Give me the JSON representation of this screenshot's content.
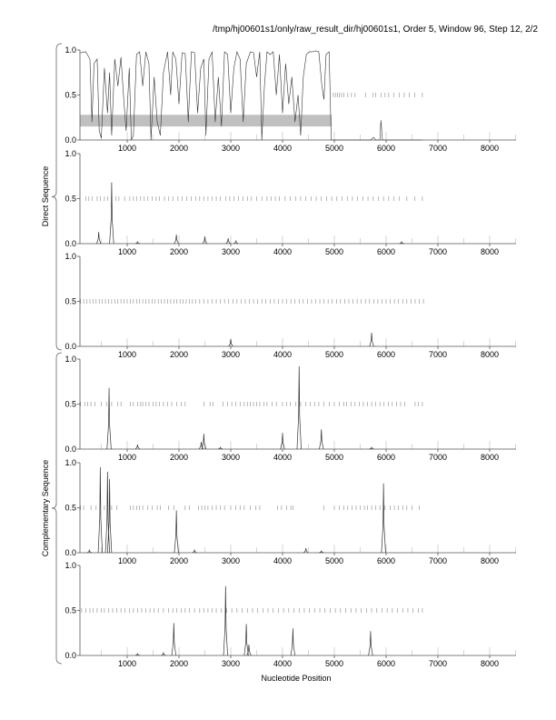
{
  "title": "/tmp/hj00601s1/only/raw_result_dir/hj00601s1, Order 5, Window 96, Step 12, 2/2",
  "group_labels": [
    "Direct Sequence",
    "Complementary Sequence"
  ],
  "chart_data": [
    {
      "type": "line",
      "xlabel": "Nucleotide Position",
      "xlim": [
        0,
        8500
      ],
      "ylim": [
        0,
        1
      ],
      "xticks": [
        1000,
        2000,
        3000,
        4000,
        5000,
        6000,
        7000,
        8000
      ],
      "yticks": [
        "0.0",
        "0.5",
        "1.0"
      ],
      "panels": [
        {
          "group": "Direct Sequence",
          "highlight_band": {
            "x": [
              90,
              4950
            ],
            "y": [
              0.15,
              0.28
            ]
          },
          "curve": [
            [
              100,
              0.97
            ],
            [
              200,
              0.98
            ],
            [
              280,
              0.9
            ],
            [
              320,
              0.2
            ],
            [
              360,
              0.85
            ],
            [
              420,
              0.9
            ],
            [
              460,
              0.1
            ],
            [
              500,
              0.02
            ],
            [
              560,
              0.8
            ],
            [
              620,
              0.3
            ],
            [
              660,
              0.75
            ],
            [
              700,
              0.05
            ],
            [
              760,
              0.9
            ],
            [
              820,
              0.6
            ],
            [
              880,
              0.92
            ],
            [
              940,
              0.4
            ],
            [
              980,
              0.1
            ],
            [
              1040,
              0.8
            ],
            [
              1080,
              0.0
            ],
            [
              1120,
              0.05
            ],
            [
              1180,
              0.95
            ],
            [
              1240,
              0.98
            ],
            [
              1300,
              0.6
            ],
            [
              1360,
              0.98
            ],
            [
              1420,
              0.85
            ],
            [
              1460,
              0.0
            ],
            [
              1520,
              0.7
            ],
            [
              1580,
              0.2
            ],
            [
              1640,
              0.05
            ],
            [
              1700,
              0.75
            ],
            [
              1780,
              0.98
            ],
            [
              1840,
              0.5
            ],
            [
              1880,
              0.98
            ],
            [
              1940,
              0.9
            ],
            [
              2000,
              0.4
            ],
            [
              2060,
              0.97
            ],
            [
              2120,
              0.96
            ],
            [
              2180,
              0.2
            ],
            [
              2240,
              0.98
            ],
            [
              2300,
              0.97
            ],
            [
              2360,
              0.3
            ],
            [
              2420,
              0.8
            ],
            [
              2480,
              0.9
            ],
            [
              2520,
              0.05
            ],
            [
              2580,
              0.9
            ],
            [
              2640,
              0.98
            ],
            [
              2700,
              0.2
            ],
            [
              2760,
              0.7
            ],
            [
              2820,
              0.15
            ],
            [
              2880,
              0.98
            ],
            [
              2940,
              0.95
            ],
            [
              3000,
              0.3
            ],
            [
              3060,
              0.8
            ],
            [
              3120,
              0.98
            ],
            [
              3180,
              0.9
            ],
            [
              3240,
              0.2
            ],
            [
              3300,
              0.85
            ],
            [
              3380,
              0.98
            ],
            [
              3440,
              0.97
            ],
            [
              3500,
              0.7
            ],
            [
              3560,
              0.98
            ],
            [
              3600,
              0.0
            ],
            [
              3650,
              0.6
            ],
            [
              3700,
              0.98
            ],
            [
              3760,
              0.95
            ],
            [
              3820,
              0.98
            ],
            [
              3880,
              0.5
            ],
            [
              3940,
              0.95
            ],
            [
              4000,
              0.3
            ],
            [
              4060,
              0.85
            ],
            [
              4120,
              0.4
            ],
            [
              4180,
              0.7
            ],
            [
              4240,
              0.2
            ],
            [
              4300,
              0.5
            ],
            [
              4350,
              0.05
            ],
            [
              4400,
              0.7
            ],
            [
              4460,
              0.95
            ],
            [
              4520,
              0.98
            ],
            [
              4580,
              0.98
            ],
            [
              4640,
              0.99
            ],
            [
              4700,
              0.98
            ],
            [
              4760,
              0.6
            ],
            [
              4800,
              0.45
            ],
            [
              4840,
              0.95
            ],
            [
              4900,
              0.98
            ],
            [
              4940,
              0.0
            ],
            [
              5000,
              0
            ],
            [
              5700,
              0
            ],
            [
              5760,
              0.03
            ],
            [
              5800,
              0
            ],
            [
              5880,
              0
            ],
            [
              5900,
              0.22
            ],
            [
              5930,
              0
            ],
            [
              6700,
              0
            ]
          ],
          "peaks": [],
          "orf_ticks": [
            4980,
            5020,
            5060,
            5100,
            5140,
            5180,
            5260,
            5330,
            5400,
            5600,
            5750,
            5800,
            5900,
            5980,
            6050,
            6150,
            6250,
            6350,
            6450,
            6550,
            6700
          ]
        },
        {
          "group": "Direct Sequence",
          "curve": [],
          "peaks": [
            [
              450,
              0.13
            ],
            [
              700,
              0.68
            ],
            [
              1200,
              0.02
            ],
            [
              1950,
              0.1
            ],
            [
              2500,
              0.08
            ],
            [
              2950,
              0.06
            ],
            [
              3100,
              0.03
            ],
            [
              6300,
              0.02
            ]
          ],
          "orf_ticks": [
            200,
            260,
            320,
            420,
            480,
            560,
            620,
            700,
            780,
            840,
            950,
            1050,
            1120,
            1180,
            1260,
            1330,
            1400,
            1480,
            1560,
            1620,
            1720,
            1800,
            1880,
            1980,
            2060,
            2150,
            2240,
            2320,
            2400,
            2480,
            2560,
            2640,
            2720,
            2800,
            2900,
            2980,
            3060,
            3150,
            3240,
            3320,
            3400,
            3500,
            3600,
            3700,
            3780,
            3860,
            3940,
            4050,
            4150,
            4250,
            4350,
            4450,
            4550,
            4650,
            4750,
            4850,
            4950,
            5050,
            5150,
            5250,
            5350,
            5450,
            5550,
            5650,
            5750,
            5850,
            5950,
            6050,
            6150,
            6250,
            6400,
            6550,
            6700
          ]
        },
        {
          "group": "Direct Sequence",
          "curve": [],
          "peaks": [
            [
              3000,
              0.08
            ],
            [
              5720,
              0.15
            ]
          ],
          "orf_ticks": [
            100,
            160,
            220,
            280,
            340,
            400,
            460,
            520,
            580,
            640,
            700,
            760,
            820,
            880,
            940,
            1000,
            1060,
            1120,
            1180,
            1240,
            1300,
            1360,
            1420,
            1480,
            1540,
            1600,
            1660,
            1720,
            1780,
            1840,
            1900,
            1960,
            2020,
            2080,
            2140,
            2200,
            2260,
            2320,
            2400,
            2480,
            2560,
            2640,
            2720,
            2800,
            2880,
            2960,
            3040,
            3120,
            3200,
            3280,
            3360,
            3440,
            3520,
            3600,
            3680,
            3760,
            3840,
            3920,
            4000,
            4080,
            4160,
            4240,
            4320,
            4400,
            4480,
            4560,
            4640,
            4720,
            4800,
            4880,
            4960,
            5040,
            5120,
            5200,
            5280,
            5360,
            5440,
            5520,
            5600,
            5680,
            5760,
            5840,
            5920,
            6000,
            6080,
            6160,
            6240,
            6320,
            6400,
            6480,
            6560,
            6640,
            6720
          ]
        },
        {
          "group": "Complementary Sequence",
          "curve": [],
          "peaks": [
            [
              650,
              0.68
            ],
            [
              1200,
              0.05
            ],
            [
              2430,
              0.08
            ],
            [
              2480,
              0.17
            ],
            [
              2800,
              0.02
            ],
            [
              4000,
              0.18
            ],
            [
              4320,
              0.92
            ],
            [
              4750,
              0.22
            ],
            [
              5720,
              0.02
            ]
          ],
          "orf_ticks": [
            100,
            180,
            240,
            300,
            380,
            500,
            600,
            700,
            820,
            880,
            1060,
            1120,
            1200,
            1260,
            1300,
            1360,
            1420,
            1500,
            1560,
            1620,
            1700,
            1780,
            1860,
            1960,
            2040,
            2120,
            2480,
            2600,
            2660,
            2850,
            2940,
            3020,
            3100,
            3180,
            3260,
            3320,
            3380,
            3440,
            3500,
            3560,
            3640,
            3700,
            3800,
            3880,
            4000,
            4080,
            4150,
            4250,
            4350,
            4450,
            4540,
            4620,
            4700,
            4800,
            4900,
            5000,
            5100,
            5180,
            5240,
            5320,
            5400,
            5480,
            5560,
            5640,
            5720,
            5800,
            5880,
            5960,
            6040,
            6120,
            6200,
            6280,
            6360,
            6560,
            6620,
            6700
          ]
        },
        {
          "group": "Complementary Sequence",
          "curve": [],
          "peaks": [
            [
              270,
              0.03
            ],
            [
              480,
              0.95
            ],
            [
              620,
              0.9
            ],
            [
              660,
              0.82
            ],
            [
              1950,
              0.47
            ],
            [
              2300,
              0.03
            ],
            [
              4450,
              0.05
            ],
            [
              4750,
              0.02
            ],
            [
              5950,
              0.77
            ]
          ],
          "orf_ticks": [
            100,
            160,
            300,
            400,
            560,
            700,
            800,
            1060,
            1120,
            1180,
            1240,
            1300,
            1400,
            1480,
            1580,
            1640,
            1800,
            1900,
            2120,
            2200,
            2380,
            2440,
            2500,
            2560,
            2640,
            2720,
            2800,
            2880,
            3000,
            3100,
            3180,
            3260,
            3380,
            3480,
            3560,
            3900,
            3980,
            4080,
            4160,
            4200,
            4800,
            5000,
            5100,
            5180,
            5260,
            5340,
            5420,
            5500,
            5580,
            5640,
            5720,
            5800,
            5880,
            5980,
            6080,
            6160,
            6240,
            6320,
            6400,
            6500,
            6640
          ]
        },
        {
          "group": "Complementary Sequence",
          "curve": [],
          "peaks": [
            [
              1200,
              0.02
            ],
            [
              1700,
              0.03
            ],
            [
              1900,
              0.36
            ],
            [
              2900,
              0.77
            ],
            [
              3300,
              0.35
            ],
            [
              3350,
              0.12
            ],
            [
              4200,
              0.3
            ],
            [
              5700,
              0.27
            ]
          ],
          "orf_ticks": [
            120,
            200,
            280,
            340,
            420,
            500,
            560,
            640,
            720,
            800,
            880,
            960,
            1040,
            1120,
            1200,
            1280,
            1360,
            1440,
            1520,
            1600,
            1700,
            1800,
            1880,
            1960,
            2040,
            2120,
            2200,
            2300,
            2400,
            2480,
            2560,
            2640,
            2720,
            2820,
            2920,
            3020,
            3120,
            3220,
            3320,
            3420,
            3520,
            3620,
            3720,
            3820,
            3920,
            4020,
            4120,
            4220,
            4320,
            4420,
            4520,
            4620,
            4720,
            4820,
            4920,
            5020,
            5120,
            5220,
            5320,
            5420,
            5520,
            5620,
            5720,
            5820,
            5920,
            6020,
            6120,
            6220,
            6320,
            6420,
            6520,
            6620,
            6700
          ]
        }
      ]
    }
  ]
}
